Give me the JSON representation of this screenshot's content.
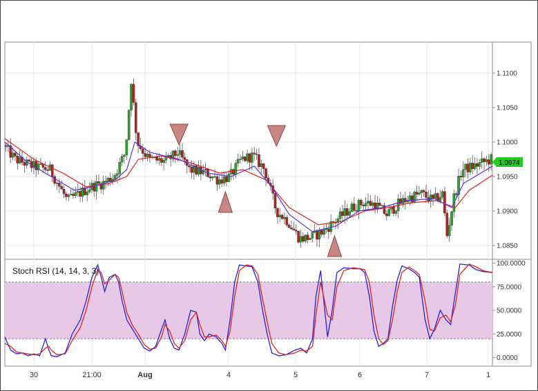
{
  "chart_data": [
    {
      "type": "candlestick",
      "title": "",
      "y_ticks": [
        "1.1100",
        "1.1050",
        "1.1000",
        "1.0950",
        "1.0900",
        "1.0850"
      ],
      "ylim": [
        1.083,
        1.1145
      ],
      "x_ticks": [
        "30",
        "21:00",
        "Aug",
        "4",
        "5",
        "6",
        "7",
        "1"
      ],
      "current_price": "1.0974",
      "price_anchor": [
        [
          0,
          1.0995
        ],
        [
          10,
          1.0975
        ],
        [
          25,
          1.0965
        ],
        [
          40,
          1.096
        ],
        [
          55,
          1.0915
        ],
        [
          65,
          1.0925
        ],
        [
          75,
          1.0935
        ],
        [
          85,
          1.094
        ],
        [
          95,
          1.095
        ],
        [
          105,
          1.0985
        ],
        [
          110,
          1.109
        ],
        [
          115,
          1.1
        ],
        [
          125,
          1.0975
        ],
        [
          140,
          1.0972
        ],
        [
          150,
          1.0985
        ],
        [
          160,
          1.096
        ],
        [
          175,
          1.0955
        ],
        [
          185,
          1.0945
        ],
        [
          195,
          1.095
        ],
        [
          205,
          1.0975
        ],
        [
          215,
          1.098
        ],
        [
          225,
          1.096
        ],
        [
          235,
          1.09
        ],
        [
          245,
          1.0885
        ],
        [
          255,
          1.086
        ],
        [
          265,
          1.0862
        ],
        [
          275,
          1.087
        ],
        [
          285,
          1.0885
        ],
        [
          300,
          1.0905
        ],
        [
          310,
          1.0912
        ],
        [
          320,
          1.091
        ],
        [
          330,
          1.0895
        ],
        [
          340,
          1.091
        ],
        [
          350,
          1.092
        ],
        [
          360,
          1.0925
        ],
        [
          370,
          1.0915
        ],
        [
          378,
          1.0925
        ],
        [
          382,
          1.0865
        ],
        [
          388,
          1.092
        ],
        [
          395,
          1.096
        ],
        [
          405,
          1.0965
        ],
        [
          420,
          1.0975
        ]
      ],
      "ema_fast": [
        [
          0,
          1.1
        ],
        [
          20,
          1.097
        ],
        [
          45,
          1.0945
        ],
        [
          60,
          1.093
        ],
        [
          75,
          1.0935
        ],
        [
          95,
          1.0945
        ],
        [
          105,
          1.096
        ],
        [
          112,
          1.1
        ],
        [
          125,
          1.0985
        ],
        [
          150,
          1.0975
        ],
        [
          175,
          1.0955
        ],
        [
          195,
          1.095
        ],
        [
          215,
          1.0965
        ],
        [
          230,
          1.0935
        ],
        [
          245,
          1.0895
        ],
        [
          265,
          1.087
        ],
        [
          285,
          1.0878
        ],
        [
          305,
          1.09
        ],
        [
          325,
          1.0905
        ],
        [
          345,
          1.0915
        ],
        [
          370,
          1.0918
        ],
        [
          385,
          1.0905
        ],
        [
          395,
          1.094
        ],
        [
          420,
          1.0965
        ]
      ],
      "ema_slow": [
        [
          0,
          1.1005
        ],
        [
          25,
          1.0975
        ],
        [
          50,
          1.0955
        ],
        [
          70,
          1.0935
        ],
        [
          90,
          1.094
        ],
        [
          105,
          1.095
        ],
        [
          115,
          1.0975
        ],
        [
          135,
          1.098
        ],
        [
          160,
          1.097
        ],
        [
          185,
          1.0955
        ],
        [
          205,
          1.096
        ],
        [
          225,
          1.0945
        ],
        [
          245,
          1.0905
        ],
        [
          270,
          1.088
        ],
        [
          290,
          1.0885
        ],
        [
          310,
          1.09
        ],
        [
          330,
          1.0905
        ],
        [
          350,
          1.0912
        ],
        [
          372,
          1.0915
        ],
        [
          388,
          1.0905
        ],
        [
          400,
          1.093
        ],
        [
          420,
          1.0952
        ]
      ],
      "markers": [
        {
          "kind": "down-triangle",
          "x": 150,
          "y": 1.101
        },
        {
          "kind": "up-triangle",
          "x": 190,
          "y": 1.0912
        },
        {
          "kind": "down-triangle",
          "x": 234,
          "y": 1.1008
        },
        {
          "kind": "up-triangle",
          "x": 284,
          "y": 1.0848
        }
      ]
    },
    {
      "type": "line",
      "title": "Stoch RSI (14, 14, 3, 3)",
      "y_ticks": [
        "100.0000",
        "75.0000",
        "50.0000",
        "25.0000",
        "0.0000"
      ],
      "ylim": [
        -9,
        104
      ],
      "band": [
        20,
        80
      ],
      "series": [
        {
          "color": "#2222dd",
          "points": [
            [
              0,
              22
            ],
            [
              5,
              8
            ],
            [
              10,
              4
            ],
            [
              15,
              5
            ],
            [
              20,
              2
            ],
            [
              25,
              4
            ],
            [
              30,
              2
            ],
            [
              35,
              20
            ],
            [
              38,
              8
            ],
            [
              40,
              2
            ],
            [
              45,
              1
            ],
            [
              52,
              5
            ],
            [
              58,
              25
            ],
            [
              65,
              40
            ],
            [
              70,
              60
            ],
            [
              75,
              85
            ],
            [
              80,
              98
            ],
            [
              83,
              85
            ],
            [
              86,
              70
            ],
            [
              90,
              85
            ],
            [
              95,
              88
            ],
            [
              98,
              80
            ],
            [
              101,
              60
            ],
            [
              105,
              40
            ],
            [
              110,
              30
            ],
            [
              115,
              20
            ],
            [
              120,
              10
            ],
            [
              125,
              7
            ],
            [
              130,
              12
            ],
            [
              135,
              30
            ],
            [
              138,
              40
            ],
            [
              142,
              20
            ],
            [
              146,
              10
            ],
            [
              150,
              8
            ],
            [
              155,
              25
            ],
            [
              160,
              50
            ],
            [
              165,
              48
            ],
            [
              168,
              25
            ],
            [
              172,
              18
            ],
            [
              176,
              25
            ],
            [
              182,
              22
            ],
            [
              187,
              15
            ],
            [
              190,
              8
            ],
            [
              194,
              40
            ],
            [
              198,
              80
            ],
            [
              202,
              98
            ],
            [
              208,
              97
            ],
            [
              213,
              96
            ],
            [
              218,
              80
            ],
            [
              222,
              50
            ],
            [
              226,
              25
            ],
            [
              230,
              5
            ],
            [
              236,
              2
            ],
            [
              242,
              3
            ],
            [
              250,
              8
            ],
            [
              255,
              10
            ],
            [
              260,
              5
            ],
            [
              265,
              20
            ],
            [
              268,
              65
            ],
            [
              272,
              92
            ],
            [
              278,
              22
            ],
            [
              282,
              50
            ],
            [
              286,
              90
            ],
            [
              292,
              95
            ],
            [
              300,
              94
            ],
            [
              306,
              94
            ],
            [
              310,
              90
            ],
            [
              314,
              65
            ],
            [
              318,
              28
            ],
            [
              322,
              12
            ],
            [
              326,
              15
            ],
            [
              330,
              20
            ],
            [
              334,
              55
            ],
            [
              338,
              82
            ],
            [
              342,
              97
            ],
            [
              348,
              94
            ],
            [
              353,
              90
            ],
            [
              357,
              85
            ],
            [
              362,
              40
            ],
            [
              366,
              20
            ],
            [
              370,
              30
            ],
            [
              375,
              50
            ],
            [
              380,
              40
            ],
            [
              384,
              35
            ],
            [
              388,
              68
            ],
            [
              392,
              99
            ],
            [
              400,
              98
            ],
            [
              406,
              93
            ],
            [
              412,
              91
            ],
            [
              420,
              90
            ]
          ]
        },
        {
          "color": "#dd2222",
          "points": [
            [
              0,
              15
            ],
            [
              5,
              12
            ],
            [
              10,
              6
            ],
            [
              15,
              5
            ],
            [
              20,
              4
            ],
            [
              25,
              3
            ],
            [
              30,
              4
            ],
            [
              35,
              10
            ],
            [
              38,
              12
            ],
            [
              40,
              8
            ],
            [
              45,
              3
            ],
            [
              52,
              4
            ],
            [
              58,
              18
            ],
            [
              65,
              32
            ],
            [
              70,
              50
            ],
            [
              75,
              75
            ],
            [
              80,
              93
            ],
            [
              83,
              90
            ],
            [
              86,
              78
            ],
            [
              90,
              82
            ],
            [
              95,
              88
            ],
            [
              98,
              85
            ],
            [
              101,
              70
            ],
            [
              105,
              48
            ],
            [
              110,
              34
            ],
            [
              115,
              25
            ],
            [
              120,
              14
            ],
            [
              125,
              9
            ],
            [
              130,
              10
            ],
            [
              135,
              22
            ],
            [
              138,
              35
            ],
            [
              142,
              28
            ],
            [
              146,
              15
            ],
            [
              150,
              10
            ],
            [
              155,
              18
            ],
            [
              160,
              40
            ],
            [
              165,
              48
            ],
            [
              168,
              35
            ],
            [
              172,
              22
            ],
            [
              176,
              22
            ],
            [
              182,
              24
            ],
            [
              187,
              18
            ],
            [
              190,
              12
            ],
            [
              194,
              28
            ],
            [
              198,
              65
            ],
            [
              202,
              92
            ],
            [
              208,
              98
            ],
            [
              213,
              97
            ],
            [
              218,
              88
            ],
            [
              222,
              62
            ],
            [
              226,
              38
            ],
            [
              230,
              15
            ],
            [
              236,
              5
            ],
            [
              242,
              3
            ],
            [
              250,
              5
            ],
            [
              255,
              8
            ],
            [
              260,
              7
            ],
            [
              265,
              12
            ],
            [
              268,
              45
            ],
            [
              272,
              80
            ],
            [
              278,
              45
            ],
            [
              282,
              40
            ],
            [
              286,
              75
            ],
            [
              292,
              92
            ],
            [
              300,
              95
            ],
            [
              306,
              94
            ],
            [
              310,
              93
            ],
            [
              314,
              80
            ],
            [
              318,
              45
            ],
            [
              322,
              20
            ],
            [
              326,
              14
            ],
            [
              330,
              18
            ],
            [
              334,
              40
            ],
            [
              338,
              70
            ],
            [
              342,
              90
            ],
            [
              348,
              96
            ],
            [
              353,
              92
            ],
            [
              357,
              88
            ],
            [
              362,
              60
            ],
            [
              366,
              30
            ],
            [
              370,
              28
            ],
            [
              375,
              42
            ],
            [
              380,
              45
            ],
            [
              384,
              38
            ],
            [
              388,
              55
            ],
            [
              392,
              88
            ],
            [
              400,
              99
            ],
            [
              406,
              96
            ],
            [
              412,
              92
            ],
            [
              420,
              90
            ]
          ]
        }
      ]
    }
  ],
  "colors": {
    "bull": "#2ca02c",
    "bear": "#b22222",
    "ema_fast": "#5533dd",
    "ema_slow": "#dd2222",
    "badge": "#22cc22",
    "band_fill": "#e7c8e7",
    "marker": "#c98484"
  }
}
